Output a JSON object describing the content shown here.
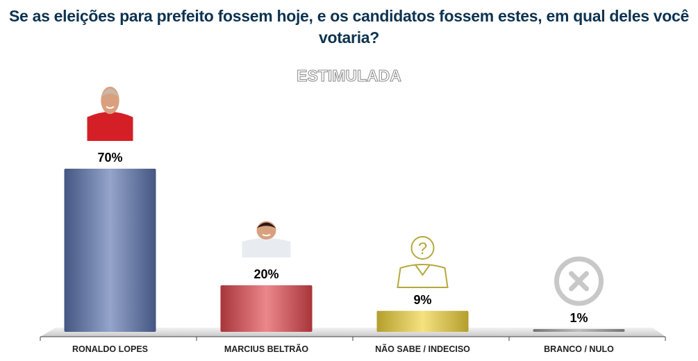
{
  "chart_data": {
    "type": "bar",
    "title": "Se as eleições para prefeito fossem hoje,  e os candidatos fossem estes, em qual deles você votaria?",
    "subtitle": "ESTIMULADA",
    "categories": [
      "RONALDO LOPES",
      "MARCIUS BELTRÃO",
      "NÃO SABE / INDECISO",
      "BRANCO / NULO"
    ],
    "values": [
      70,
      20,
      9,
      1
    ],
    "data_labels": [
      "70%",
      "20%",
      "9%",
      "1%"
    ],
    "colors": [
      "#5a73ad",
      "#e0474d",
      "#f0d23c",
      "#9a9a9a"
    ],
    "icons": [
      "candidate-photo",
      "candidate-photo",
      "question-person-icon",
      "x-circle-icon"
    ],
    "ylim": [
      0,
      70
    ],
    "grid": false,
    "legend": "none"
  }
}
